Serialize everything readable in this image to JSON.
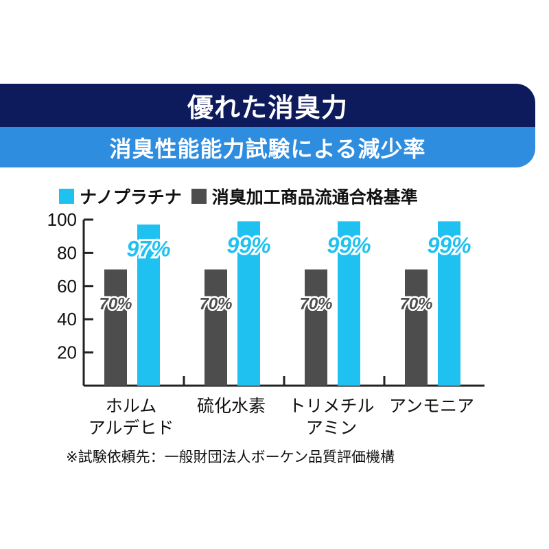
{
  "header": {
    "title": "優れた消臭力",
    "subtitle": "消臭性能能力試験による減少率"
  },
  "legend": [
    {
      "label": "ナノプラチナ",
      "color": "#1fc1f0"
    },
    {
      "label": "消臭加工商品流通合格基準",
      "color": "#4d4d4d"
    }
  ],
  "chart_data": {
    "type": "bar",
    "categories": [
      [
        "ホルム",
        "アルデヒド"
      ],
      [
        "硫化水素"
      ],
      [
        "トリメチル",
        "アミン"
      ],
      [
        "アンモニア"
      ]
    ],
    "series": [
      {
        "name": "消臭加工商品流通合格基準",
        "color": "#4d4d4d",
        "values": [
          70,
          70,
          70,
          70
        ],
        "labels": [
          "70%",
          "70%",
          "70%",
          "70%"
        ]
      },
      {
        "name": "ナノプラチナ",
        "color": "#1fc1f0",
        "values": [
          97,
          99,
          99,
          99
        ],
        "labels": [
          "97%",
          "99%",
          "99%",
          "99%"
        ]
      }
    ],
    "yticks": [
      20,
      40,
      60,
      80,
      100
    ],
    "ylim": [
      0,
      100
    ],
    "grid": false
  },
  "footnote": "※試験依頼先：一般財団法人ボーケン品質評価機構"
}
